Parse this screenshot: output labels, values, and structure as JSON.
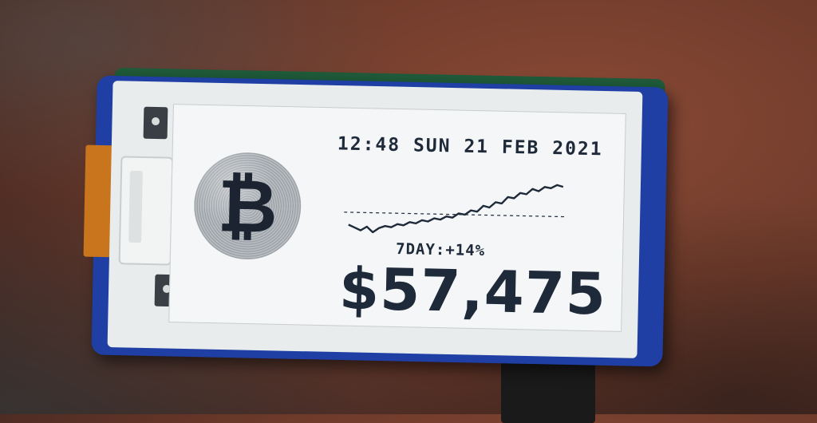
{
  "display": {
    "datetime": "12:48 SUN 21 FEB 2021",
    "coin_symbol": "₿",
    "change_label": "7DAY:+14%",
    "price": "$57,475"
  },
  "sparkline": {
    "values": [
      0.15,
      0.1,
      0.05,
      0.12,
      0.02,
      0.1,
      0.14,
      0.12,
      0.18,
      0.16,
      0.22,
      0.2,
      0.26,
      0.24,
      0.3,
      0.28,
      0.34,
      0.32,
      0.4,
      0.38,
      0.46,
      0.44,
      0.55,
      0.52,
      0.62,
      0.6,
      0.72,
      0.7,
      0.8,
      0.78,
      0.88,
      0.84,
      0.92,
      0.9,
      0.96,
      0.93
    ],
    "baseline": 0.38
  },
  "colors": {
    "ink": "#1e2a3a",
    "frame": "#1f3fa5",
    "panel": "#e9ecec"
  }
}
